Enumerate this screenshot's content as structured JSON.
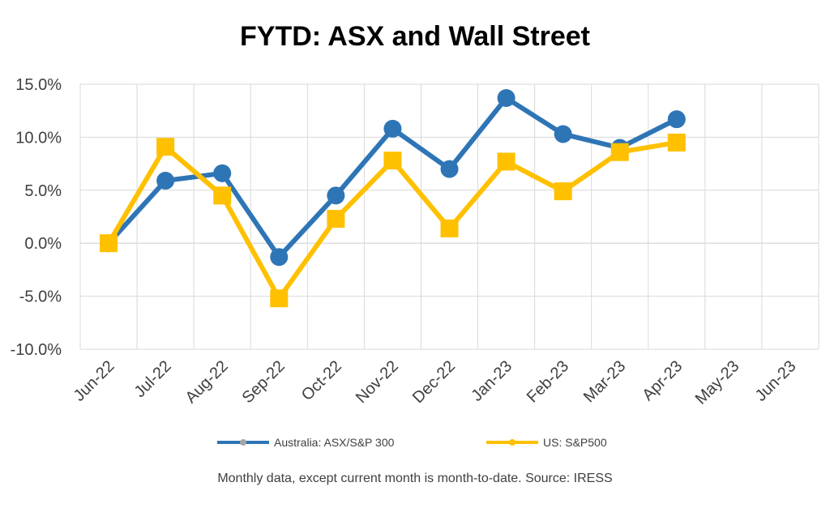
{
  "chart_data": {
    "type": "line",
    "title": "FYTD: ASX and Wall Street",
    "categories": [
      "Jun-22",
      "Jul-22",
      "Aug-22",
      "Sep-22",
      "Oct-22",
      "Nov-22",
      "Dec-22",
      "Jan-23",
      "Feb-23",
      "Mar-23",
      "Apr-23",
      "May-23",
      "Jun-23"
    ],
    "ylim": [
      -10,
      15
    ],
    "yticks": [
      "15.0%",
      "10.0%",
      "5.0%",
      "0.0%",
      "-5.0%",
      "-10.0%"
    ],
    "ytick_values": [
      15,
      10,
      5,
      0,
      -5,
      -10
    ],
    "grid": true,
    "legend_position": "bottom",
    "series": [
      {
        "name": "Australia: ASX/S&P 300",
        "color": "#2E75B6",
        "marker": "circle",
        "values": [
          0.0,
          5.9,
          6.6,
          -1.3,
          4.5,
          10.8,
          7.0,
          13.7,
          10.3,
          9.0,
          11.7,
          null,
          null
        ]
      },
      {
        "name": "US: S&P500",
        "color": "#FFC000",
        "marker": "square",
        "values": [
          0.0,
          9.1,
          4.5,
          -5.2,
          2.3,
          7.8,
          1.4,
          7.7,
          4.9,
          8.6,
          9.5,
          null,
          null
        ]
      }
    ]
  },
  "footnote": "Monthly data, except current month is month-to-date.  Source: IRESS"
}
